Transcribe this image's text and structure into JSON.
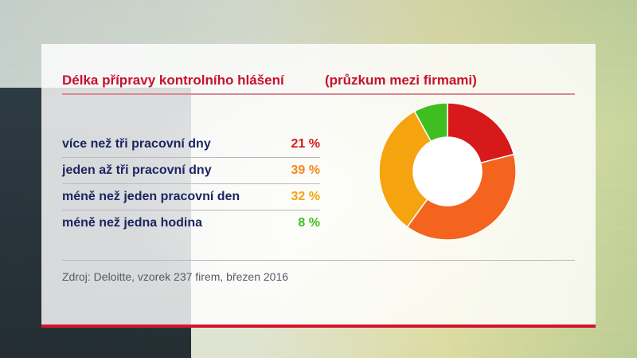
{
  "title": "Délka přípravy kontrolního hlášení",
  "subtitle": "(průzkum mezi firmami)",
  "source": "Zdroj: Deloitte, vzorek 237 firem, březen 2016",
  "colors": {
    "brand_red": "#c8102e",
    "label_navy": "#1d2561"
  },
  "chart_data": {
    "type": "pie",
    "style": "donut",
    "title": "Délka přípravy kontrolního hlášení",
    "subtitle": "(průzkum mezi firmami)",
    "categories": [
      "více než tři pracovní dny",
      "jeden až tři pracovní dny",
      "méně než jeden pracovní den",
      "méně než jedna hodina"
    ],
    "values": [
      21,
      39,
      32,
      8
    ],
    "value_labels": [
      "21 %",
      "39 %",
      "32 %",
      "8 %"
    ],
    "colors": [
      "#d7191c",
      "#f4641e",
      "#f5a410",
      "#3fbf1f"
    ]
  }
}
